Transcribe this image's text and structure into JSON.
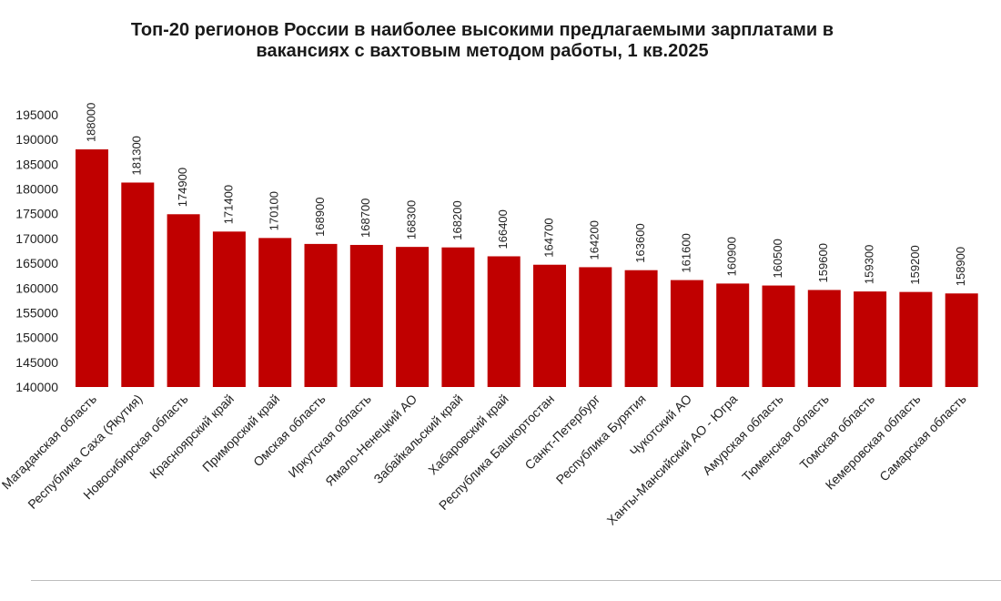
{
  "chart_data": {
    "type": "bar",
    "title_lines": [
      "Топ-20 регионов России в наиболее высокими  предлагаемыми зарплатами в",
      "вакансиях с вахтовым методом работы, 1 кв.2025"
    ],
    "categories": [
      "Магаданская область",
      "Республика Саха (Якутия)",
      "Новосибирская область",
      "Красноярский край",
      "Приморский край",
      "Омская область",
      "Иркутская область",
      "Ямало-Ненецкий АО",
      "Забайкальский край",
      "Хабаровский край",
      "Республика Башкортостан",
      "Санкт-Петербург",
      "Республика Бурятия",
      "Чукотский АО",
      "Ханты-Мансийский АО - Югра",
      "Амурская область",
      "Тюменская область",
      "Томская область",
      "Кемеровская область",
      "Самарская область"
    ],
    "values": [
      188000,
      181300,
      174900,
      171400,
      170100,
      168900,
      168700,
      168300,
      168200,
      166400,
      164700,
      164200,
      163600,
      161600,
      160900,
      160500,
      159600,
      159300,
      159200,
      158900
    ],
    "ylim": [
      140000,
      195000
    ],
    "yticks": [
      140000,
      145000,
      150000,
      155000,
      160000,
      165000,
      170000,
      175000,
      180000,
      185000,
      190000,
      195000
    ],
    "bar_color": "#c00000",
    "grid": false,
    "legend": "none"
  }
}
